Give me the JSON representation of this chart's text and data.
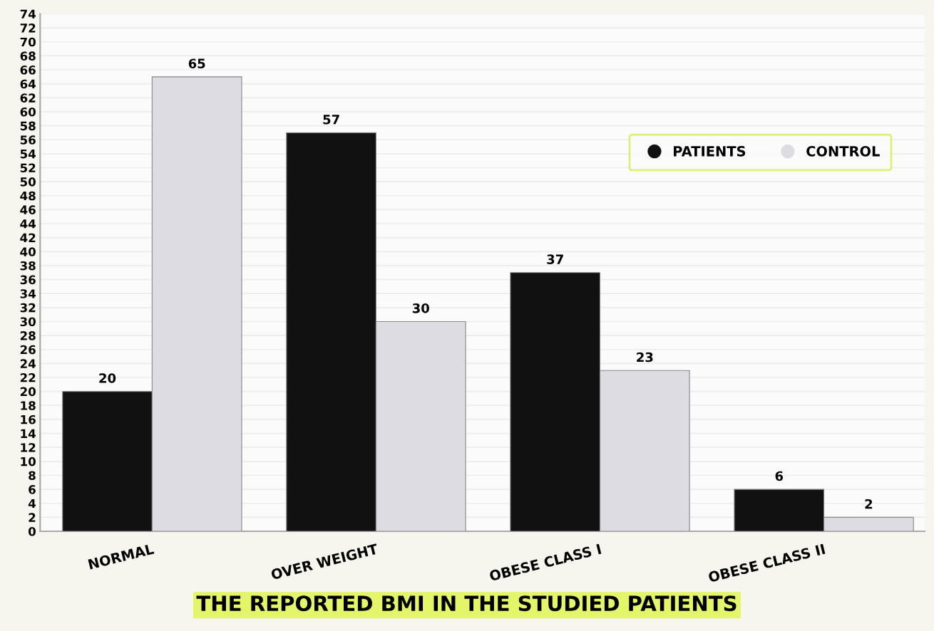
{
  "chart_data": {
    "type": "bar",
    "title": "THE REPORTED BMI IN THE STUDIED PATIENTS",
    "categories": [
      "NORMAL",
      "OVER WEIGHT",
      "OBESE CLASS I",
      "OBESE CLASS II"
    ],
    "series": [
      {
        "name": "PATIENTS",
        "color": "#111111",
        "values": [
          20,
          57,
          37,
          6
        ]
      },
      {
        "name": "CONTROL",
        "color": "#dcdce2",
        "values": [
          65,
          30,
          23,
          2
        ]
      }
    ],
    "ylim": [
      0,
      74
    ],
    "yticks": [
      0,
      2,
      4,
      6,
      8,
      10,
      12,
      14,
      16,
      18,
      20,
      22,
      24,
      26,
      28,
      30,
      32,
      34,
      36,
      38,
      40,
      42,
      44,
      46,
      48,
      50,
      52,
      54,
      56,
      58,
      60,
      62,
      64,
      66,
      68,
      70,
      72,
      74
    ],
    "data_labels": true,
    "legend": "top right",
    "marker": "circle",
    "grid": "y"
  }
}
